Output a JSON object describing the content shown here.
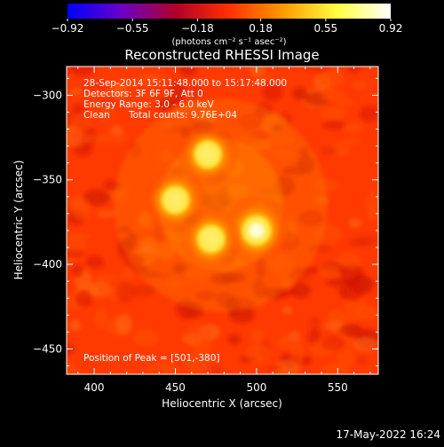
{
  "chart_data": {
    "type": "heatmap",
    "title": "Reconstructed RHESSI Image",
    "xlabel": "Heliocentric X (arcsec)",
    "ylabel": "Heliocentric Y (arcsec)",
    "xlim": [
      383,
      575
    ],
    "ylim": [
      -465,
      -283
    ],
    "xticks": [
      400,
      450,
      500,
      550
    ],
    "yticks": [
      -300,
      -350,
      -400,
      -450
    ],
    "xtick_labels": [
      "400",
      "450",
      "500",
      "550"
    ],
    "ytick_labels": [
      "−300",
      "−350",
      "−400",
      "−450"
    ],
    "colorbar": {
      "range": [
        -0.92,
        0.92
      ],
      "ticks": [
        -0.92,
        -0.55,
        -0.18,
        0.18,
        0.55,
        0.92
      ],
      "tick_labels": [
        "−0.92",
        "−0.55",
        "−0.18",
        "0.18",
        "0.55",
        "0.92"
      ],
      "unit_label": "(photons cm⁻² s⁻¹ asec⁻²)",
      "colors": [
        "#0000ff",
        "#6a00c8",
        "#b0002a",
        "#ff3000",
        "#ff9a00",
        "#ffff40",
        "#ffffff"
      ]
    },
    "background_level": 0.25,
    "sources": [
      {
        "x": 470,
        "y": -335,
        "peak": 0.78
      },
      {
        "x": 450,
        "y": -362,
        "peak": 0.8
      },
      {
        "x": 500,
        "y": -380,
        "peak": 0.92
      },
      {
        "x": 472,
        "y": -385,
        "peak": 0.8
      }
    ],
    "annotations": {
      "date_range": "28-Sep-2014 15:11:48.000 to 15:17:48.000",
      "detectors": "Detectors: 3F 6F 9F, Att 0",
      "energy_range": "Energy Range: 3.0 - 6.0 keV",
      "algorithm": "Clean",
      "total_counts": "Total counts: 9.76E+04",
      "peak_position": "Position of Peak = [501,-380]"
    },
    "footer_date": "17-May-2022 16:24"
  }
}
